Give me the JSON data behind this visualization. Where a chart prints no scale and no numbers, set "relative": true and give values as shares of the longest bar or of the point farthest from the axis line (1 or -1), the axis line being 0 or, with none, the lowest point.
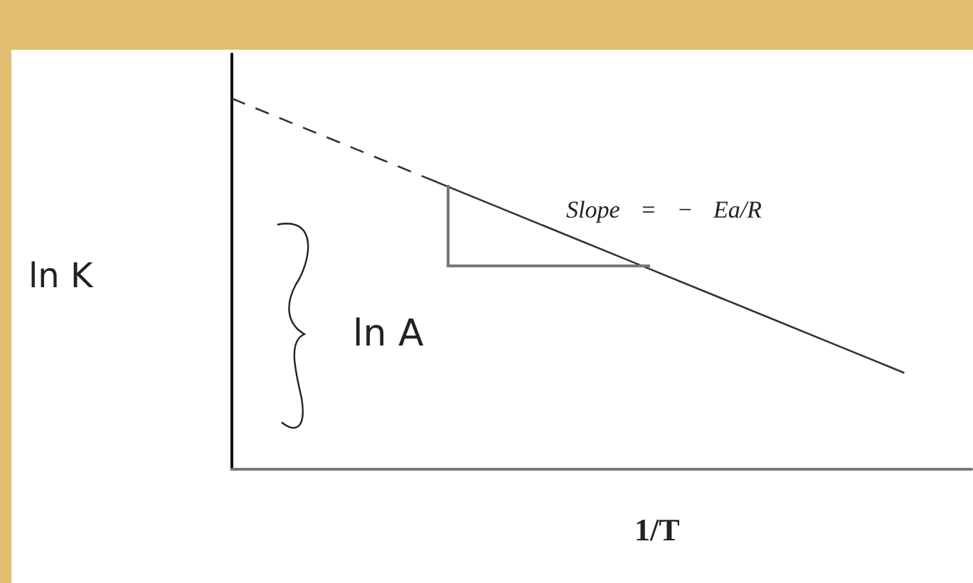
{
  "chart_data": {
    "type": "line",
    "relative": true,
    "ylabel": "ln K",
    "xlabel": "1/T",
    "annotations": [
      "ln A",
      "Slope = − Ea/R"
    ],
    "categories": [
      null,
      null,
      null,
      null,
      null,
      null,
      null,
      null,
      null,
      null,
      null,
      null
    ],
    "series": [
      {
        "color": "#333333",
        "line_style": "dashed",
        "values": [
          1,
          0.926,
          0.852,
          0.778,
          null,
          null,
          null,
          null,
          null,
          null,
          null,
          null
        ]
      },
      {
        "color": "#333333",
        "line_style": "solid",
        "values": [
          null,
          null,
          null,
          0.778,
          0.704,
          0.63,
          0.556,
          0.482,
          0.408,
          0.334,
          0.26,
          null
        ]
      }
    ],
    "marker": "none",
    "grid": false
  }
}
